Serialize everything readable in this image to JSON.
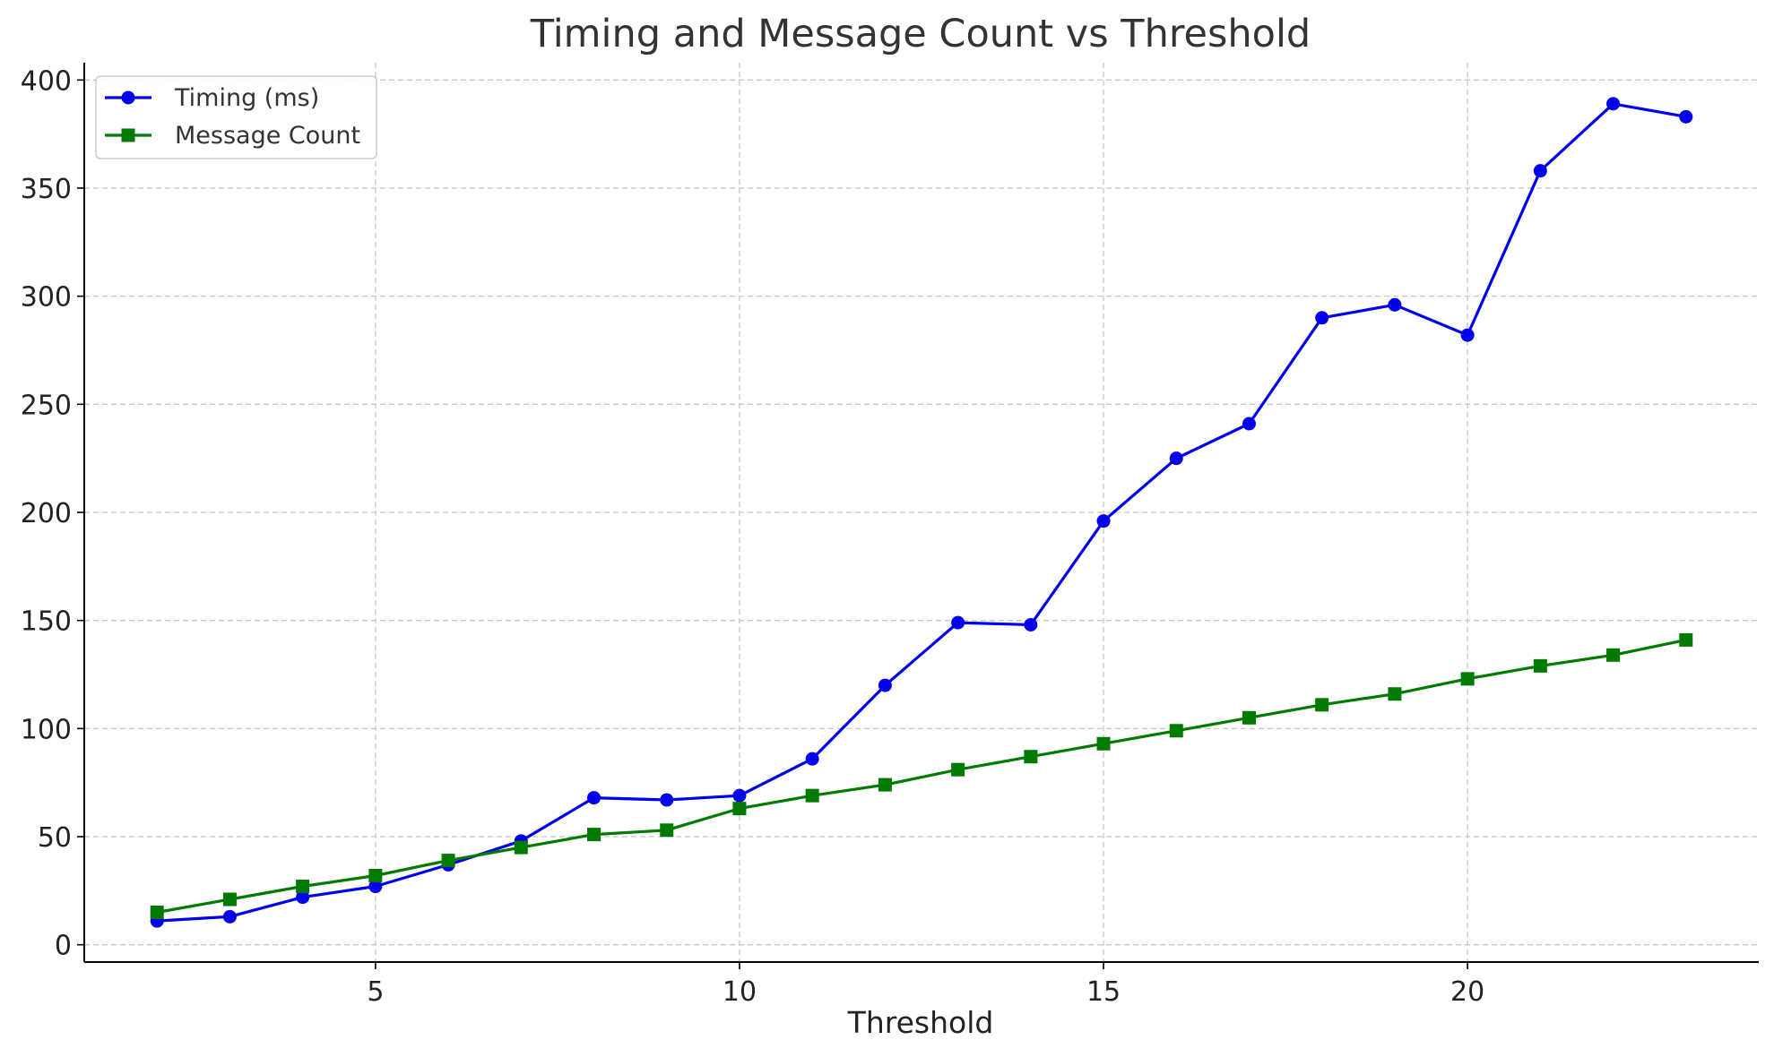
{
  "chart_data": {
    "type": "line",
    "title": "Timing and Message Count vs Threshold",
    "xlabel": "Threshold",
    "ylabel": "",
    "x": [
      2,
      3,
      4,
      5,
      6,
      7,
      8,
      9,
      10,
      11,
      12,
      13,
      14,
      15,
      16,
      17,
      18,
      19,
      20,
      21,
      22,
      23
    ],
    "xlim": [
      1,
      24
    ],
    "ylim": [
      -8,
      408
    ],
    "xticks": [
      5,
      10,
      15,
      20
    ],
    "yticks": [
      0,
      50,
      100,
      150,
      200,
      250,
      300,
      350,
      400
    ],
    "grid": true,
    "legend_position": "top-left",
    "series": [
      {
        "name": "Timing (ms)",
        "color": "#0000ee",
        "marker": "circle",
        "values": [
          11,
          13,
          22,
          27,
          37,
          48,
          68,
          67,
          69,
          86,
          120,
          149,
          148,
          196,
          225,
          241,
          290,
          296,
          282,
          358,
          389,
          383
        ]
      },
      {
        "name": "Message Count",
        "color": "#007a00",
        "marker": "square",
        "values": [
          15,
          21,
          27,
          32,
          39,
          45,
          51,
          53,
          63,
          69,
          74,
          81,
          87,
          93,
          99,
          105,
          111,
          116,
          123,
          129,
          134,
          141
        ]
      }
    ]
  }
}
